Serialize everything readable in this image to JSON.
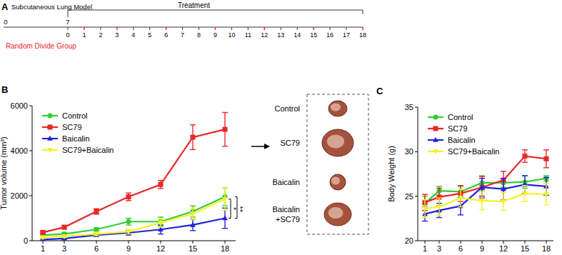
{
  "chart_data": [
    {
      "type": "timeline",
      "title": "A",
      "model_label": "Subcutaneous Lung Model",
      "phase_label": "Treatment",
      "group_label": "Random Divide Group",
      "model_ticks": [
        0,
        7
      ],
      "xlim": [
        0,
        18
      ],
      "xticks": [
        0,
        1,
        2,
        3,
        4,
        5,
        6,
        7,
        8,
        9,
        10,
        11,
        12,
        13,
        14,
        15,
        16,
        17,
        18
      ],
      "treatment_days": [
        1,
        3,
        6,
        9,
        12,
        15,
        18
      ]
    },
    {
      "type": "line",
      "title": "B",
      "y_label": "Tumor volume (mm³)",
      "x": [
        1,
        3,
        6,
        9,
        12,
        15,
        18
      ],
      "xticks": [
        1,
        3,
        6,
        9,
        12,
        15,
        18
      ],
      "xlim": [
        0,
        19
      ],
      "ylim": [
        0,
        6000
      ],
      "yticks": [
        0,
        2000,
        4000,
        6000
      ],
      "legend": "top-left",
      "series": [
        {
          "name": "Control",
          "color": "#33cc33",
          "marker": "circle",
          "values": [
            250,
            300,
            500,
            850,
            850,
            1300,
            1950
          ],
          "errors": [
            50,
            60,
            80,
            150,
            200,
            250,
            400
          ]
        },
        {
          "name": "SC79",
          "color": "#e8272a",
          "marker": "square",
          "values": [
            370,
            600,
            1300,
            1950,
            2500,
            4600,
            4950
          ],
          "errors": [
            50,
            80,
            120,
            170,
            180,
            550,
            750
          ]
        },
        {
          "name": "Baicalin",
          "color": "#2424d8",
          "marker": "triangle",
          "values": [
            50,
            100,
            250,
            350,
            500,
            700,
            1000
          ],
          "errors": [
            30,
            40,
            60,
            100,
            200,
            250,
            450
          ]
        },
        {
          "name": "SC79+Baicalin",
          "color": "#f2f22a",
          "marker": "triangle-down",
          "values": [
            150,
            200,
            300,
            400,
            800,
            1200,
            1850
          ],
          "errors": [
            50,
            60,
            80,
            100,
            200,
            250,
            500
          ]
        }
      ],
      "significance": [
        {
          "label": "*",
          "from": "SC79+Baicalin",
          "to": "Baicalin"
        },
        {
          "label": "**",
          "from": "Control",
          "to": "Baicalin"
        }
      ],
      "photo_labels": [
        [
          "Control"
        ],
        [
          "SC79"
        ],
        [
          "Baicalin"
        ],
        [
          "Baicalin",
          "+SC79"
        ]
      ]
    },
    {
      "type": "line",
      "title": "C",
      "y_label": "Body Weight (g)",
      "x": [
        1,
        3,
        6,
        9,
        12,
        15,
        18
      ],
      "xticks": [
        1,
        3,
        6,
        9,
        12,
        15,
        18
      ],
      "xlim": [
        0,
        19
      ],
      "ylim": [
        20,
        35
      ],
      "yticks": [
        20,
        25,
        30,
        35
      ],
      "legend": "top-left",
      "series": [
        {
          "name": "Control",
          "color": "#33cc33",
          "marker": "circle",
          "values": [
            24.2,
            25.6,
            25.5,
            26.5,
            26.5,
            26.6,
            27.0
          ],
          "errors": [
            0.8,
            0.5,
            0.6,
            0.8,
            0.5,
            0.7,
            0.3
          ]
        },
        {
          "name": "SC79",
          "color": "#e8272a",
          "marker": "square",
          "values": [
            24.3,
            24.9,
            25.3,
            26.0,
            26.8,
            29.5,
            29.2
          ],
          "errors": [
            0.9,
            1.0,
            0.9,
            1.2,
            1.0,
            0.7,
            1.0
          ]
        },
        {
          "name": "Baicalin",
          "color": "#2424d8",
          "marker": "triangle",
          "values": [
            23.0,
            23.4,
            23.9,
            26.0,
            25.8,
            26.3,
            26.1
          ],
          "errors": [
            0.8,
            0.8,
            1.0,
            1.0,
            1.2,
            1.0,
            1.0
          ]
        },
        {
          "name": "SC79+Baicalin",
          "color": "#f2f22a",
          "marker": "triangle-down",
          "values": [
            23.6,
            23.8,
            24.8,
            24.5,
            24.4,
            25.3,
            25.2
          ],
          "errors": [
            1.0,
            1.0,
            1.0,
            1.0,
            1.0,
            0.9,
            1.2
          ]
        }
      ]
    }
  ]
}
